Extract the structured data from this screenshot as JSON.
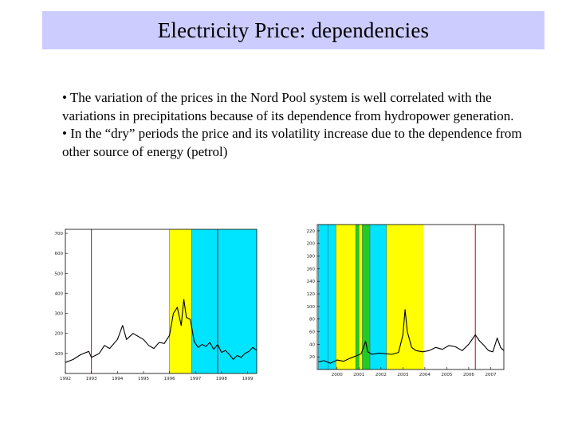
{
  "slide": {
    "title": "Electricity Price: dependencies",
    "bullets": [
      "• The variation of the prices in the Nord Pool system is well correlated with the variations in precipitations because of its dependence from hydropower generation.",
      "• In the “dry” periods the price and its volatility increase due to the dependence from other source of energy (petrol)"
    ]
  },
  "colors": {
    "title_background": "#ccccff",
    "dry_band": "#ffff00",
    "wet_band": "#00e5ff",
    "green_band": "#22cc22",
    "marker_line": "#cc0000",
    "series": "#000000"
  },
  "chart_data": [
    {
      "type": "line",
      "title": "",
      "x_ticks": [
        "1992",
        "1993",
        "1994",
        "1995",
        "1996",
        "1997",
        "1998",
        "1999"
      ],
      "y_ticks": [
        "100",
        "200",
        "300",
        "400",
        "500",
        "600",
        "700"
      ],
      "xlim": [
        1992,
        1999.35
      ],
      "ylim": [
        0,
        720
      ],
      "bands": [
        {
          "from": 1996.0,
          "to": 1996.85,
          "kind": "dry"
        },
        {
          "from": 1996.85,
          "to": 1999.35,
          "kind": "wet"
        }
      ],
      "markers": [
        1993.0,
        1997.85
      ],
      "series": [
        {
          "values": [
            [
              1992.0,
              55
            ],
            [
              1992.3,
              70
            ],
            [
              1992.6,
              95
            ],
            [
              1992.9,
              110
            ],
            [
              1993.0,
              80
            ],
            [
              1993.3,
              100
            ],
            [
              1993.5,
              140
            ],
            [
              1993.7,
              125
            ],
            [
              1994.0,
              170
            ],
            [
              1994.2,
              240
            ],
            [
              1994.35,
              170
            ],
            [
              1994.6,
              200
            ],
            [
              1994.8,
              185
            ],
            [
              1995.0,
              170
            ],
            [
              1995.2,
              140
            ],
            [
              1995.4,
              125
            ],
            [
              1995.6,
              155
            ],
            [
              1995.8,
              150
            ],
            [
              1996.0,
              190
            ],
            [
              1996.15,
              300
            ],
            [
              1996.3,
              330
            ],
            [
              1996.45,
              240
            ],
            [
              1996.55,
              370
            ],
            [
              1996.65,
              280
            ],
            [
              1996.8,
              270
            ],
            [
              1996.95,
              160
            ],
            [
              1997.1,
              130
            ],
            [
              1997.25,
              145
            ],
            [
              1997.4,
              135
            ],
            [
              1997.55,
              155
            ],
            [
              1997.7,
              120
            ],
            [
              1997.85,
              145
            ],
            [
              1998.0,
              105
            ],
            [
              1998.15,
              115
            ],
            [
              1998.3,
              95
            ],
            [
              1998.45,
              70
            ],
            [
              1998.6,
              90
            ],
            [
              1998.75,
              80
            ],
            [
              1998.9,
              100
            ],
            [
              1999.05,
              110
            ],
            [
              1999.2,
              130
            ],
            [
              1999.35,
              115
            ]
          ]
        }
      ]
    },
    {
      "type": "line",
      "title": "",
      "x_ticks": [
        "2000",
        "2001",
        "2002",
        "2003",
        "2004",
        "2005",
        "2006",
        "2007"
      ],
      "y_ticks": [
        "20",
        "40",
        "60",
        "80",
        "100",
        "120",
        "140",
        "160",
        "180",
        "200",
        "220"
      ],
      "xlim": [
        1999.1,
        2007.6
      ],
      "ylim": [
        0,
        230
      ],
      "bands": [
        {
          "from": 1999.15,
          "to": 1999.6,
          "kind": "wet"
        },
        {
          "from": 1999.6,
          "to": 1999.95,
          "kind": "wet"
        },
        {
          "from": 1999.95,
          "to": 2000.85,
          "kind": "dry"
        },
        {
          "from": 2000.85,
          "to": 2001.0,
          "kind": "green"
        },
        {
          "from": 2001.0,
          "to": 2001.15,
          "kind": "dry"
        },
        {
          "from": 2001.15,
          "to": 2001.5,
          "kind": "green"
        },
        {
          "from": 2001.5,
          "to": 2002.25,
          "kind": "wet"
        },
        {
          "from": 2002.25,
          "to": 2003.95,
          "kind": "dry"
        }
      ],
      "markers": [
        2006.3
      ],
      "series": [
        {
          "values": [
            [
              1999.15,
              12
            ],
            [
              1999.4,
              14
            ],
            [
              1999.7,
              10
            ],
            [
              2000.0,
              15
            ],
            [
              2000.3,
              13
            ],
            [
              2000.6,
              18
            ],
            [
              2000.9,
              22
            ],
            [
              2001.1,
              25
            ],
            [
              2001.3,
              45
            ],
            [
              2001.4,
              28
            ],
            [
              2001.6,
              24
            ],
            [
              2001.9,
              26
            ],
            [
              2002.2,
              25
            ],
            [
              2002.5,
              24
            ],
            [
              2002.8,
              27
            ],
            [
              2003.0,
              55
            ],
            [
              2003.1,
              95
            ],
            [
              2003.2,
              60
            ],
            [
              2003.4,
              35
            ],
            [
              2003.6,
              30
            ],
            [
              2003.9,
              28
            ],
            [
              2004.2,
              30
            ],
            [
              2004.5,
              35
            ],
            [
              2004.8,
              32
            ],
            [
              2005.1,
              38
            ],
            [
              2005.4,
              36
            ],
            [
              2005.7,
              30
            ],
            [
              2006.0,
              40
            ],
            [
              2006.3,
              55
            ],
            [
              2006.5,
              45
            ],
            [
              2006.7,
              38
            ],
            [
              2006.9,
              30
            ],
            [
              2007.1,
              28
            ],
            [
              2007.3,
              50
            ],
            [
              2007.45,
              35
            ],
            [
              2007.6,
              30
            ]
          ]
        }
      ]
    }
  ]
}
